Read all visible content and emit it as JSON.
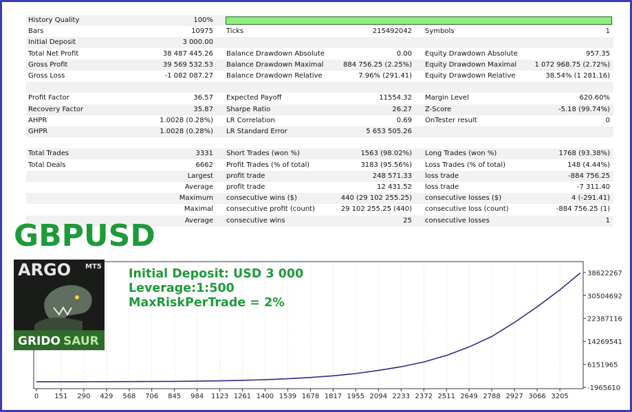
{
  "report": {
    "rows": [
      {
        "l1": "History Quality",
        "v1": "100%",
        "l2": "",
        "v2": "",
        "l3": "",
        "v3": "",
        "bar": true
      },
      {
        "l1": "Bars",
        "v1": "10975",
        "l2": "Ticks",
        "v2": "215492042",
        "l3": "Symbols",
        "v3": "1"
      },
      {
        "l1": "Initial Deposit",
        "v1": "3 000.00",
        "l2": "",
        "v2": "",
        "l3": "",
        "v3": ""
      },
      {
        "l1": "Total Net Profit",
        "v1": "38 487 445.26",
        "l2": "Balance Drawdown Absolute",
        "v2": "0.00",
        "l3": "Equity Drawdown Absolute",
        "v3": "957.35"
      },
      {
        "l1": "Gross Profit",
        "v1": "39 569 532.53",
        "l2": "Balance Drawdown Maximal",
        "v2": "884 756.25 (2.25%)",
        "l3": "Equity Drawdown Maximal",
        "v3": "1 072 968.75 (2.72%)"
      },
      {
        "l1": "Gross Loss",
        "v1": "-1 082 087.27",
        "l2": "Balance Drawdown Relative",
        "v2": "7.96% (291.41)",
        "l3": "Equity Drawdown Relative",
        "v3": "38.54% (1 281.16)"
      },
      {
        "l1": "",
        "v1": "",
        "l2": "",
        "v2": "",
        "l3": "",
        "v3": ""
      },
      {
        "l1": "Profit Factor",
        "v1": "36.57",
        "l2": "Expected Payoff",
        "v2": "11554.32",
        "l3": "Margin Level",
        "v3": "620.60%"
      },
      {
        "l1": "Recovery Factor",
        "v1": "35.87",
        "l2": "Sharpe Ratio",
        "v2": "26.27",
        "l3": "Z-Score",
        "v3": "-5.18 (99.74%)"
      },
      {
        "l1": "AHPR",
        "v1": "1.0028 (0.28%)",
        "l2": "LR Correlation",
        "v2": "0.69",
        "l3": "OnTester result",
        "v3": "0"
      },
      {
        "l1": "GHPR",
        "v1": "1.0028 (0.28%)",
        "l2": "LR Standard Error",
        "v2": "5 653 505.26",
        "l3": "",
        "v3": ""
      },
      {
        "l1": "",
        "v1": "",
        "l2": "",
        "v2": "",
        "l3": "",
        "v3": ""
      },
      {
        "l1": "Total Trades",
        "v1": "3331",
        "l2": "Short Trades (won %)",
        "v2": "1563 (98.02%)",
        "l3": "Long Trades (won %)",
        "v3": "1768 (93.38%)"
      },
      {
        "l1": "Total Deals",
        "v1": "6662",
        "l2": "Profit Trades (% of total)",
        "v2": "3183 (95.56%)",
        "l3": "Loss Trades (% of total)",
        "v3": "148 (4.44%)"
      },
      {
        "l1": "",
        "v1": "Largest",
        "l2": "profit trade",
        "v2": "248 571.33",
        "l3": "loss trade",
        "v3": "-884 756.25"
      },
      {
        "l1": "",
        "v1": "Average",
        "l2": "profit trade",
        "v2": "12 431.52",
        "l3": "loss trade",
        "v3": "-7 311.40"
      },
      {
        "l1": "",
        "v1": "Maximum",
        "l2": "consecutive wins ($)",
        "v2": "440 (29 102 255.25)",
        "l3": "consecutive losses ($)",
        "v3": "4 (-291.41)"
      },
      {
        "l1": "",
        "v1": "Maximal",
        "l2": "consecutive profit (count)",
        "v2": "29 102 255.25 (440)",
        "l3": "consecutive loss (count)",
        "v3": "-884 756.25 (1)"
      },
      {
        "l1": "",
        "v1": "Average",
        "l2": "consecutive wins",
        "v2": "25",
        "l3": "consecutive losses",
        "v3": "1"
      }
    ]
  },
  "overlay": {
    "pair": "GBPUSD",
    "logo_top": "ARGO",
    "logo_mt": "MT5",
    "logo_bottom_a": "GRIDO",
    "logo_bottom_b": "SAUR",
    "info_lines": [
      "Initial Deposit: USD 3 000",
      "Leverage:1:500",
      "MaxRiskPerTrade = 2%"
    ]
  },
  "chart_data": {
    "type": "line",
    "x_ticks": [
      "0",
      "151",
      "290",
      "429",
      "568",
      "706",
      "845",
      "984",
      "1123",
      "1261",
      "1400",
      "1539",
      "1678",
      "1817",
      "1955",
      "2094",
      "2233",
      "2372",
      "2511",
      "2649",
      "2788",
      "2927",
      "3066",
      "3205"
    ],
    "y_ticks": [
      "38622267",
      "30504692",
      "22387116",
      "14269541",
      "6151965",
      "-1965610"
    ],
    "ylim": [
      -1965610,
      42000000
    ],
    "xlim": [
      0,
      3331
    ],
    "line_color": "#2b2a8a",
    "series": [
      {
        "x": [
          0,
          151,
          290,
          429,
          568,
          706,
          845,
          984,
          1123,
          1261,
          1400,
          1539,
          1678,
          1817,
          1955,
          2094,
          2233,
          2372,
          2511,
          2649,
          2788,
          2927,
          3066,
          3205,
          3331
        ],
        "y": [
          3000,
          6000,
          12000,
          22000,
          40000,
          70000,
          115000,
          190000,
          310000,
          480000,
          720000,
          1050000,
          1500000,
          2100000,
          2900000,
          4000000,
          5300000,
          7000000,
          9300000,
          12300000,
          16000000,
          21000000,
          26500000,
          32500000,
          38490445
        ]
      }
    ]
  }
}
